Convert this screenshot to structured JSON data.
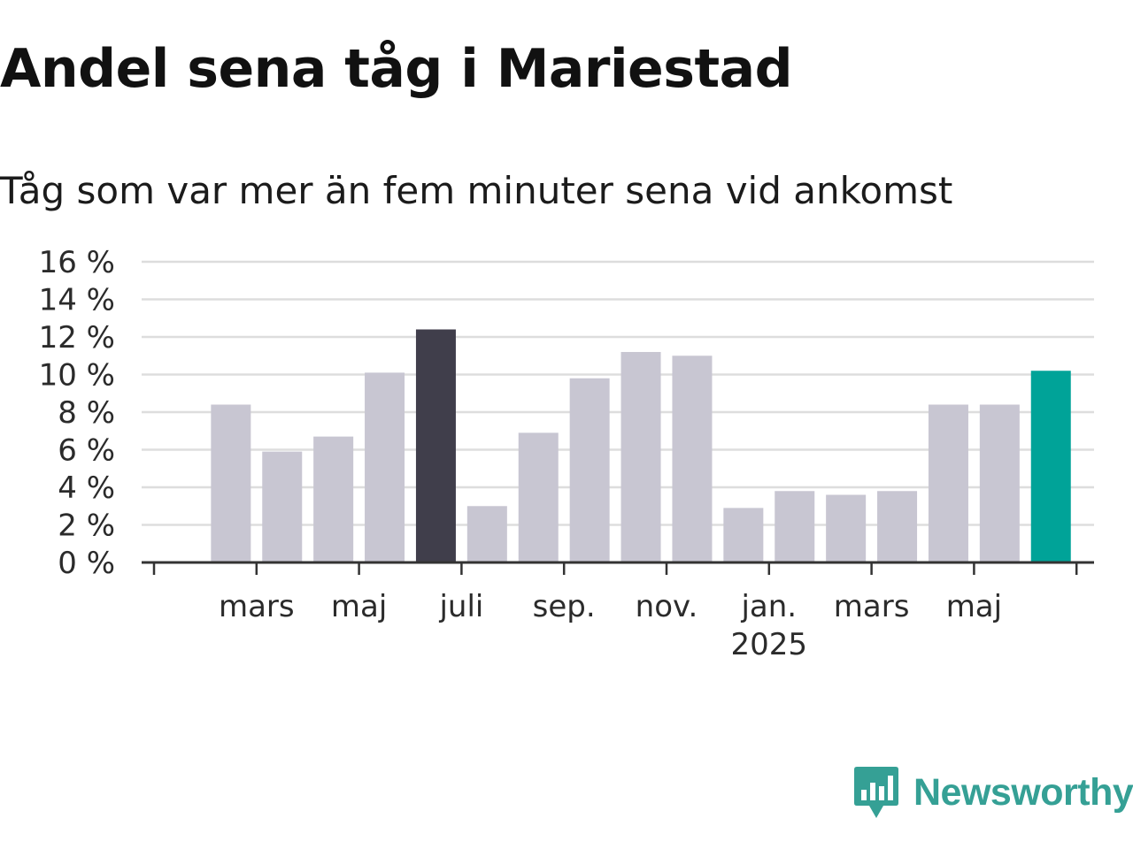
{
  "title": "Andel sena tåg i Mariestad",
  "subtitle": "Tåg som var mer än fem minuter sena vid ankomst",
  "brand": {
    "name": "Newsworthy",
    "icon": "newsworthy-logo-icon",
    "color": "#35a095"
  },
  "colors": {
    "default_bar": "#c8c6d2",
    "highlight_bar": "#403e4b",
    "latest_bar": "#00a398",
    "grid": "#dddddd",
    "axis": "#333333",
    "text": "#2b2b2b"
  },
  "chart_data": {
    "type": "bar",
    "title": "Andel sena tåg i Mariestad",
    "subtitle": "Tåg som var mer än fem minuter sena vid ankomst",
    "xlabel": "",
    "ylabel": "",
    "ylim": [
      0,
      16
    ],
    "y_ticks": [
      0,
      2,
      4,
      6,
      8,
      10,
      12,
      14,
      16
    ],
    "y_tick_labels": [
      "0 %",
      "2 %",
      "4 %",
      "6 %",
      "8 %",
      "10 %",
      "12 %",
      "14 %",
      "16 %"
    ],
    "grid": true,
    "x_tick_labels": [
      {
        "month": "2024-03",
        "label": "mars"
      },
      {
        "month": "2024-05",
        "label": "maj"
      },
      {
        "month": "2024-07",
        "label": "juli"
      },
      {
        "month": "2024-09",
        "label": "sep."
      },
      {
        "month": "2024-11",
        "label": "nov."
      },
      {
        "month": "2025-01",
        "label": "jan.",
        "sublabel": "2025"
      },
      {
        "month": "2025-03",
        "label": "mars"
      },
      {
        "month": "2025-05",
        "label": "maj"
      }
    ],
    "x_range": [
      "2024-01",
      "2025-06"
    ],
    "bars": [
      {
        "month": "2024-02",
        "value": 8.4,
        "style": "default"
      },
      {
        "month": "2024-03",
        "value": 5.9,
        "style": "default"
      },
      {
        "month": "2024-04",
        "value": 6.7,
        "style": "default"
      },
      {
        "month": "2024-05",
        "value": 10.1,
        "style": "default"
      },
      {
        "month": "2024-06",
        "value": 12.4,
        "style": "highlight"
      },
      {
        "month": "2024-07",
        "value": 3.0,
        "style": "default"
      },
      {
        "month": "2024-08",
        "value": 6.9,
        "style": "default"
      },
      {
        "month": "2024-09",
        "value": 9.8,
        "style": "default"
      },
      {
        "month": "2024-10",
        "value": 11.2,
        "style": "default"
      },
      {
        "month": "2024-11",
        "value": 11.0,
        "style": "default"
      },
      {
        "month": "2024-12",
        "value": 2.9,
        "style": "default"
      },
      {
        "month": "2025-01",
        "value": 3.8,
        "style": "default"
      },
      {
        "month": "2025-02",
        "value": 3.6,
        "style": "default"
      },
      {
        "month": "2025-03",
        "value": 3.8,
        "style": "default"
      },
      {
        "month": "2025-04",
        "value": 8.4,
        "style": "default"
      },
      {
        "month": "2025-05",
        "value": 8.4,
        "style": "default"
      },
      {
        "month": "2025-06",
        "value": 10.2,
        "style": "latest"
      }
    ]
  }
}
